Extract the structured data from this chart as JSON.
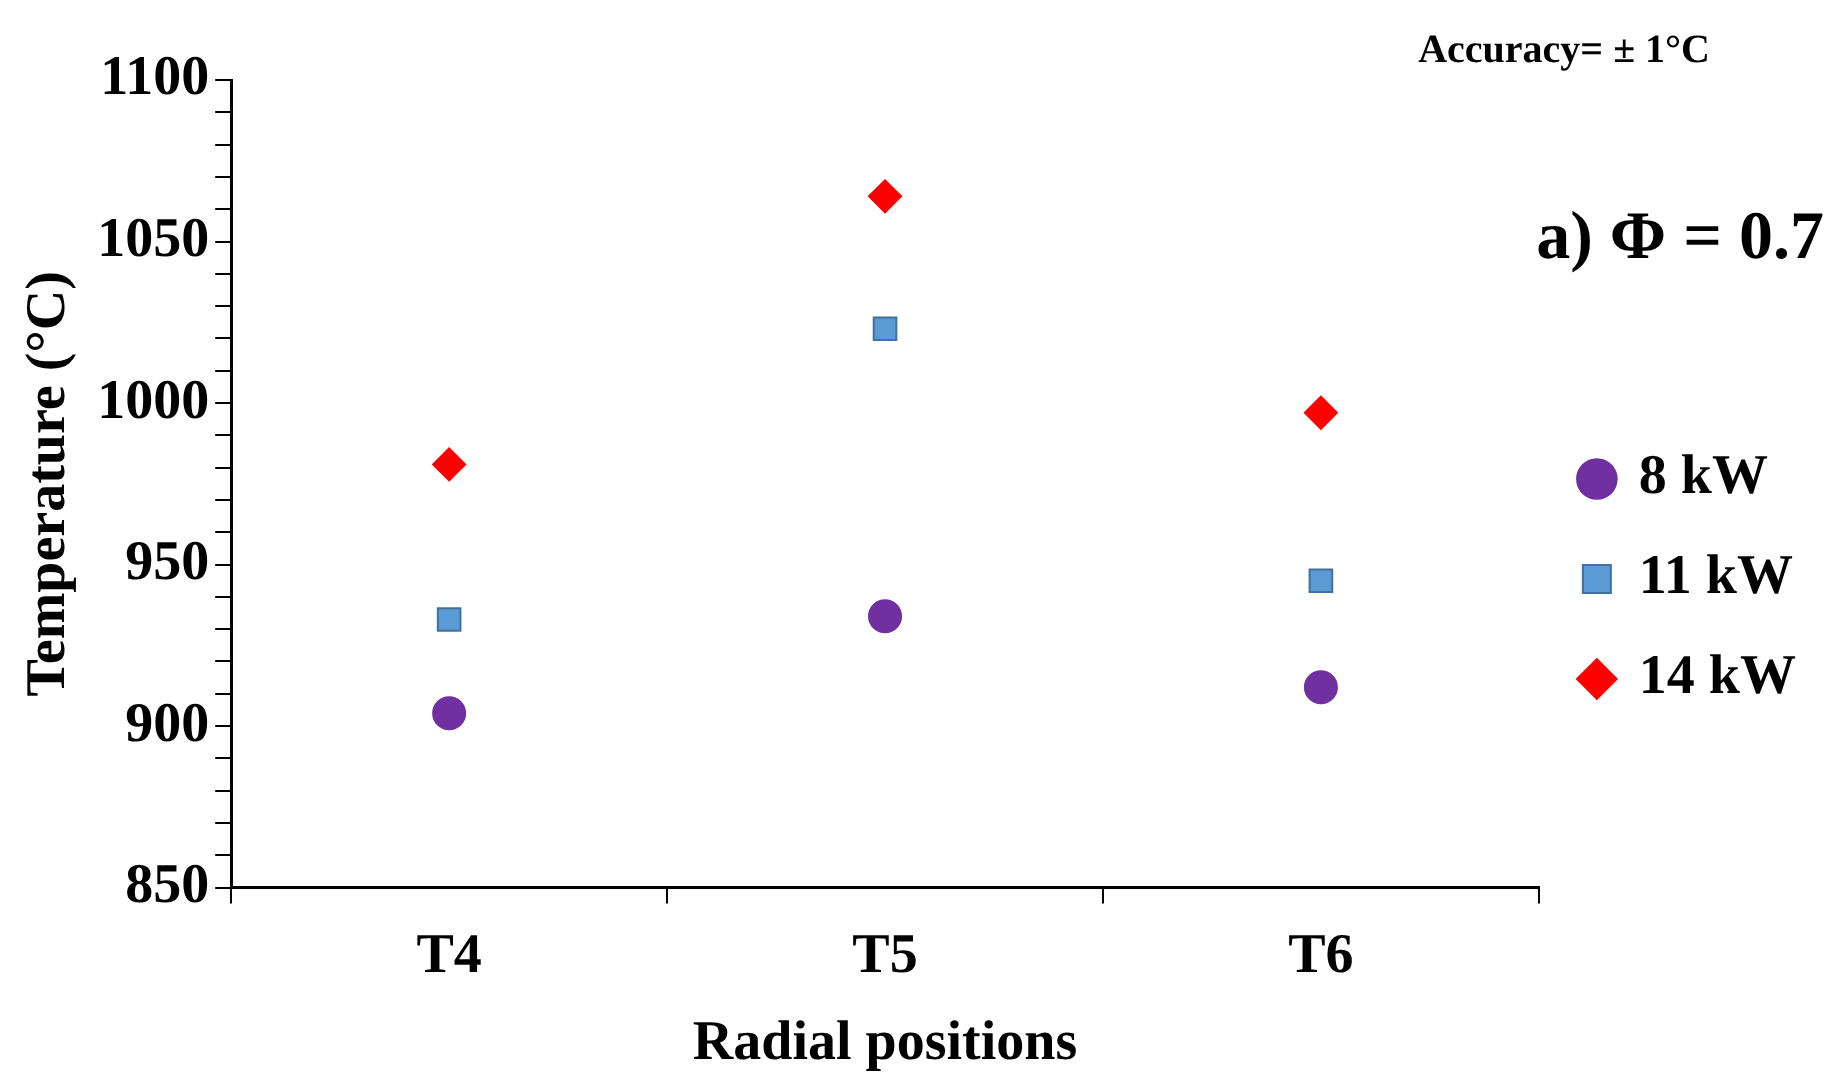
{
  "chart_data": {
    "type": "scatter",
    "xlabel": "Radial positions",
    "ylabel": "Temperature (°C)",
    "categories": [
      "T4",
      "T5",
      "T6"
    ],
    "series": [
      {
        "name": "8 kW",
        "color": "#7030a0",
        "marker": "circle",
        "values": [
          904,
          934,
          912
        ]
      },
      {
        "name": "11 kW",
        "color": "#5b9bd5",
        "marker": "square",
        "values": [
          933,
          1023,
          945
        ]
      },
      {
        "name": "14 kW",
        "color": "#ff0000",
        "marker": "diamond",
        "values": [
          981,
          1064,
          997
        ]
      }
    ],
    "ylim": [
      850,
      1100
    ],
    "yticks": [
      850,
      {
        "value": 860,
        "label": null
      },
      {
        "value": 870,
        "label": null
      },
      {
        "value": 880,
        "label": null
      },
      {
        "value": 890,
        "label": null
      },
      900,
      {
        "value": 910,
        "label": null
      },
      {
        "value": 920,
        "label": null
      },
      {
        "value": 930,
        "label": null
      },
      {
        "value": 940,
        "label": null
      },
      950,
      {
        "value": 960,
        "label": null
      },
      {
        "value": 970,
        "label": null
      },
      {
        "value": 980,
        "label": null
      },
      {
        "value": 990,
        "label": null
      },
      1000,
      {
        "value": 1010,
        "label": null
      },
      {
        "value": 1020,
        "label": null
      },
      {
        "value": 1030,
        "label": null
      },
      {
        "value": 1040,
        "label": null
      },
      1050,
      {
        "value": 1060,
        "label": null
      },
      {
        "value": 1070,
        "label": null
      },
      {
        "value": 1080,
        "label": null
      },
      {
        "value": 1090,
        "label": null
      },
      1100
    ],
    "grid": false,
    "legend": "right",
    "annotations": [
      "Accuracy= ± 1°C",
      "a) Φ = 0.7"
    ]
  }
}
